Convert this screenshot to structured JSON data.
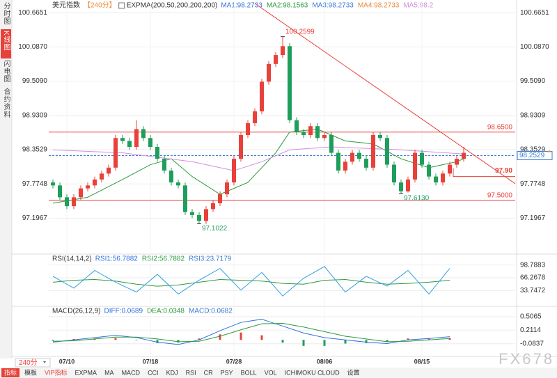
{
  "ui": {
    "sidebar": [
      "分时图",
      "K线图",
      "闪电图",
      "合约资料"
    ],
    "period_button": "240分",
    "toolbar": [
      "指标",
      "模板",
      "VIP指标",
      "EXPMA",
      "MA",
      "MACD",
      "CCI",
      "KDJ",
      "RSI",
      "CR",
      "PSY",
      "BOLL",
      "VOL",
      "ICHIMOKU CLOUD",
      "设置"
    ],
    "watermark": "FX678"
  },
  "chart_data": [
    {
      "type": "candlestick",
      "title": "美元指数",
      "period": "【240分】",
      "indicator": "EXPMA(200,50,200,200,200)",
      "legend": [
        {
          "label": "MA1:98.2733",
          "color": "#2f6fdf"
        },
        {
          "label": "MA2:98.1563",
          "color": "#2a9a3c"
        },
        {
          "label": "MA3:98.2733",
          "color": "#3a7bd5"
        },
        {
          "label": "MA4:98.2733",
          "color": "#e8893a"
        },
        {
          "label": "MA5:98.2",
          "color": "#d58ce0"
        }
      ],
      "up_color": "#e8413a",
      "down_color": "#1e9e5a",
      "xlim": [
        -0.6,
        66.4
      ],
      "xticks": [
        {
          "value": 2,
          "label": "07/10"
        },
        {
          "value": 14,
          "label": "07/18"
        },
        {
          "value": 26,
          "label": "07/28"
        },
        {
          "value": 39,
          "label": "08/06"
        },
        {
          "value": 53,
          "label": "08/15"
        }
      ],
      "ylim": [
        96.65,
        100.82
      ],
      "yticks": [
        100.6651,
        100.087,
        99.509,
        98.9309,
        98.3529,
        97.7748,
        97.1967
      ],
      "ytick_labels": [
        "100.6651",
        "100.0870",
        "99.5090",
        "98.9309",
        "98.3529",
        "97.7748",
        "97.1967"
      ],
      "grid": true,
      "candles": [
        [
          97.8,
          97.85,
          97.7,
          97.75
        ],
        [
          97.75,
          97.8,
          97.5,
          97.55
        ],
        [
          97.55,
          97.6,
          97.35,
          97.4
        ],
        [
          97.4,
          97.6,
          97.35,
          97.55
        ],
        [
          97.55,
          97.75,
          97.5,
          97.7
        ],
        [
          97.7,
          97.8,
          97.65,
          97.75
        ],
        [
          97.75,
          97.9,
          97.7,
          97.85
        ],
        [
          97.85,
          98.0,
          97.8,
          97.95
        ],
        [
          97.95,
          98.1,
          97.9,
          98.05
        ],
        [
          98.05,
          98.6,
          98.0,
          98.55
        ],
        [
          98.55,
          98.6,
          98.45,
          98.5
        ],
        [
          98.5,
          98.55,
          98.35,
          98.4
        ],
        [
          98.4,
          98.85,
          98.35,
          98.7
        ],
        [
          98.7,
          98.75,
          98.5,
          98.55
        ],
        [
          98.55,
          98.6,
          98.35,
          98.4
        ],
        [
          98.4,
          98.45,
          98.15,
          98.2
        ],
        [
          98.2,
          98.25,
          97.95,
          98.0
        ],
        [
          98.0,
          98.05,
          97.75,
          97.8
        ],
        [
          97.8,
          97.85,
          97.7,
          97.75
        ],
        [
          97.75,
          97.8,
          97.25,
          97.3
        ],
        [
          97.3,
          97.35,
          97.2,
          97.25
        ],
        [
          97.25,
          97.3,
          97.1022,
          97.15
        ],
        [
          97.15,
          97.4,
          97.1,
          97.35
        ],
        [
          97.35,
          97.5,
          97.3,
          97.45
        ],
        [
          97.45,
          97.65,
          97.4,
          97.6
        ],
        [
          97.6,
          97.85,
          97.55,
          97.8
        ],
        [
          97.8,
          98.25,
          97.75,
          98.2
        ],
        [
          98.2,
          98.65,
          98.15,
          98.6
        ],
        [
          98.6,
          98.85,
          98.55,
          98.8
        ],
        [
          98.8,
          99.05,
          98.75,
          99.0
        ],
        [
          99.0,
          99.55,
          98.95,
          99.5
        ],
        [
          99.5,
          99.85,
          99.45,
          99.8
        ],
        [
          99.8,
          100.0,
          99.75,
          99.95
        ],
        [
          99.95,
          100.2599,
          99.9,
          100.1
        ],
        [
          100.1,
          100.15,
          98.8,
          98.85
        ],
        [
          98.85,
          98.9,
          98.6,
          98.65
        ],
        [
          98.65,
          98.7,
          98.55,
          98.6
        ],
        [
          98.6,
          98.8,
          98.55,
          98.75
        ],
        [
          98.75,
          98.8,
          98.5,
          98.55
        ],
        [
          98.55,
          98.65,
          98.5,
          98.6
        ],
        [
          98.6,
          98.65,
          98.25,
          98.3
        ],
        [
          98.3,
          98.35,
          97.95,
          98.0
        ],
        [
          98.0,
          98.2,
          97.95,
          98.15
        ],
        [
          98.15,
          98.35,
          98.1,
          98.3
        ],
        [
          98.3,
          98.35,
          98.15,
          98.2
        ],
        [
          98.2,
          98.25,
          98.0,
          98.05
        ],
        [
          98.05,
          98.65,
          98.0,
          98.6
        ],
        [
          98.6,
          98.65,
          98.5,
          98.55
        ],
        [
          98.55,
          98.6,
          98.05,
          98.1
        ],
        [
          98.1,
          98.15,
          97.75,
          97.8
        ],
        [
          97.8,
          97.85,
          97.613,
          97.65
        ],
        [
          97.65,
          97.9,
          97.63,
          97.85
        ],
        [
          97.85,
          98.35,
          97.8,
          98.3
        ],
        [
          98.3,
          98.35,
          98.05,
          98.1
        ],
        [
          98.1,
          98.15,
          97.85,
          97.9
        ],
        [
          97.9,
          97.95,
          97.75,
          97.8
        ],
        [
          97.8,
          98.0,
          97.75,
          97.95
        ],
        [
          97.95,
          98.15,
          97.9,
          98.1
        ],
        [
          98.1,
          98.25,
          98.05,
          98.2
        ],
        [
          98.2,
          98.4,
          98.15,
          98.3
        ]
      ],
      "lines": [
        {
          "color": "#2a9a3c",
          "x": [
            0,
            5,
            10,
            14,
            17,
            20,
            24,
            28,
            32,
            34,
            38,
            42,
            46,
            50,
            54,
            58,
            59
          ],
          "values": [
            97.45,
            97.55,
            97.85,
            98.1,
            98.2,
            97.9,
            97.6,
            97.8,
            98.3,
            98.65,
            98.7,
            98.5,
            98.45,
            98.2,
            98.05,
            98.15,
            98.2
          ]
        },
        {
          "color": "#d58ce0",
          "x": [
            0,
            10,
            20,
            26,
            30,
            34,
            40,
            50,
            59
          ],
          "values": [
            98.35,
            98.3,
            98.15,
            98.0,
            98.15,
            98.35,
            98.4,
            98.35,
            98.28
          ]
        }
      ],
      "extremes": [
        {
          "value": 100.2599,
          "label": "100.2599",
          "kind": "high",
          "color": "#e8413a"
        },
        {
          "value": 97.1022,
          "label": "97.1022",
          "kind": "low",
          "color": "#1e9e5a"
        },
        {
          "value": 97.613,
          "label": "97.6130",
          "kind": "low",
          "color": "#1e9e5a"
        }
      ],
      "hlines": [
        {
          "value": 98.65,
          "label": "98.6500",
          "style": "full"
        },
        {
          "value": 97.5,
          "label": "97.5000",
          "style": "full"
        },
        {
          "value": 97.9,
          "label": "97.90",
          "style": "short"
        }
      ],
      "hline_color": "#e8413a",
      "current": {
        "value": 98.2529,
        "label": "98.2529",
        "color": "#3a7bd5"
      },
      "trendline": {
        "color": "#e8413a",
        "points": [
          [
            29,
            100.82
          ],
          [
            66.4,
            97.78
          ]
        ]
      }
    },
    {
      "type": "line",
      "title": "RSI(14,14,2)",
      "legend": [
        {
          "label": "RSI1:56.7882",
          "color": "#2f6fdf"
        },
        {
          "label": "RSI2:56.7882",
          "color": "#2a9a3c"
        },
        {
          "label": "RSI3:23.7179",
          "color": "#3a7bd5"
        }
      ],
      "ylim": [
        8,
        107
      ],
      "yticks": [
        98.7883,
        66.2678,
        33.7472
      ],
      "ytick_labels": [
        "98.7883",
        "66.2678",
        "33.7472"
      ],
      "x": [
        0,
        3,
        6,
        9,
        12,
        15,
        18,
        21,
        24,
        27,
        30,
        33,
        36,
        39,
        42,
        45,
        48,
        51,
        54,
        57
      ],
      "series": [
        {
          "color": "#2a9a3c",
          "values": [
            55,
            60,
            62,
            58,
            50,
            45,
            48,
            55,
            62,
            60,
            58,
            52,
            50,
            60,
            62,
            55,
            50,
            52,
            55,
            60
          ]
        },
        {
          "color": "#2f9fdf",
          "values": [
            70,
            40,
            85,
            55,
            30,
            75,
            25,
            60,
            90,
            35,
            80,
            20,
            65,
            95,
            30,
            70,
            45,
            85,
            25,
            90
          ]
        }
      ]
    },
    {
      "type": "macd",
      "title": "MACD(26,12,9)",
      "legend": [
        {
          "label": "DIFF:0.0689",
          "color": "#2f6fdf"
        },
        {
          "label": "DEA:0.0348",
          "color": "#2a9a3c"
        },
        {
          "label": "MACD:0.0682",
          "color": "#3a7bd5"
        }
      ],
      "ylim": [
        -0.33,
        0.58
      ],
      "yticks": [
        0.5065,
        0.2114,
        -0.0837
      ],
      "ytick_labels": [
        "0.5065",
        "0.2114",
        "-0.0837"
      ],
      "x": [
        0,
        3,
        6,
        9,
        12,
        15,
        18,
        21,
        24,
        27,
        30,
        33,
        36,
        39,
        42,
        45,
        48,
        51,
        54,
        57
      ],
      "series": [
        {
          "color": "#2f6fdf",
          "values": [
            -0.05,
            0.0,
            0.05,
            0.1,
            0.05,
            -0.05,
            -0.1,
            0.0,
            0.2,
            0.38,
            0.45,
            0.3,
            0.15,
            0.05,
            0.0,
            -0.05,
            -0.08,
            0.0,
            0.03,
            0.07
          ]
        },
        {
          "color": "#2a9a3c",
          "values": [
            -0.03,
            -0.02,
            0.02,
            0.06,
            0.06,
            0.02,
            -0.04,
            -0.03,
            0.08,
            0.22,
            0.35,
            0.36,
            0.28,
            0.18,
            0.08,
            0.02,
            -0.04,
            -0.03,
            0.0,
            0.03
          ]
        }
      ],
      "histogram": [
        -0.02,
        0.02,
        0.03,
        0.04,
        -0.01,
        -0.07,
        -0.06,
        0.03,
        0.12,
        0.16,
        0.1,
        -0.06,
        -0.13,
        -0.13,
        -0.08,
        -0.07,
        -0.04,
        0.03,
        0.03,
        0.04
      ]
    }
  ]
}
